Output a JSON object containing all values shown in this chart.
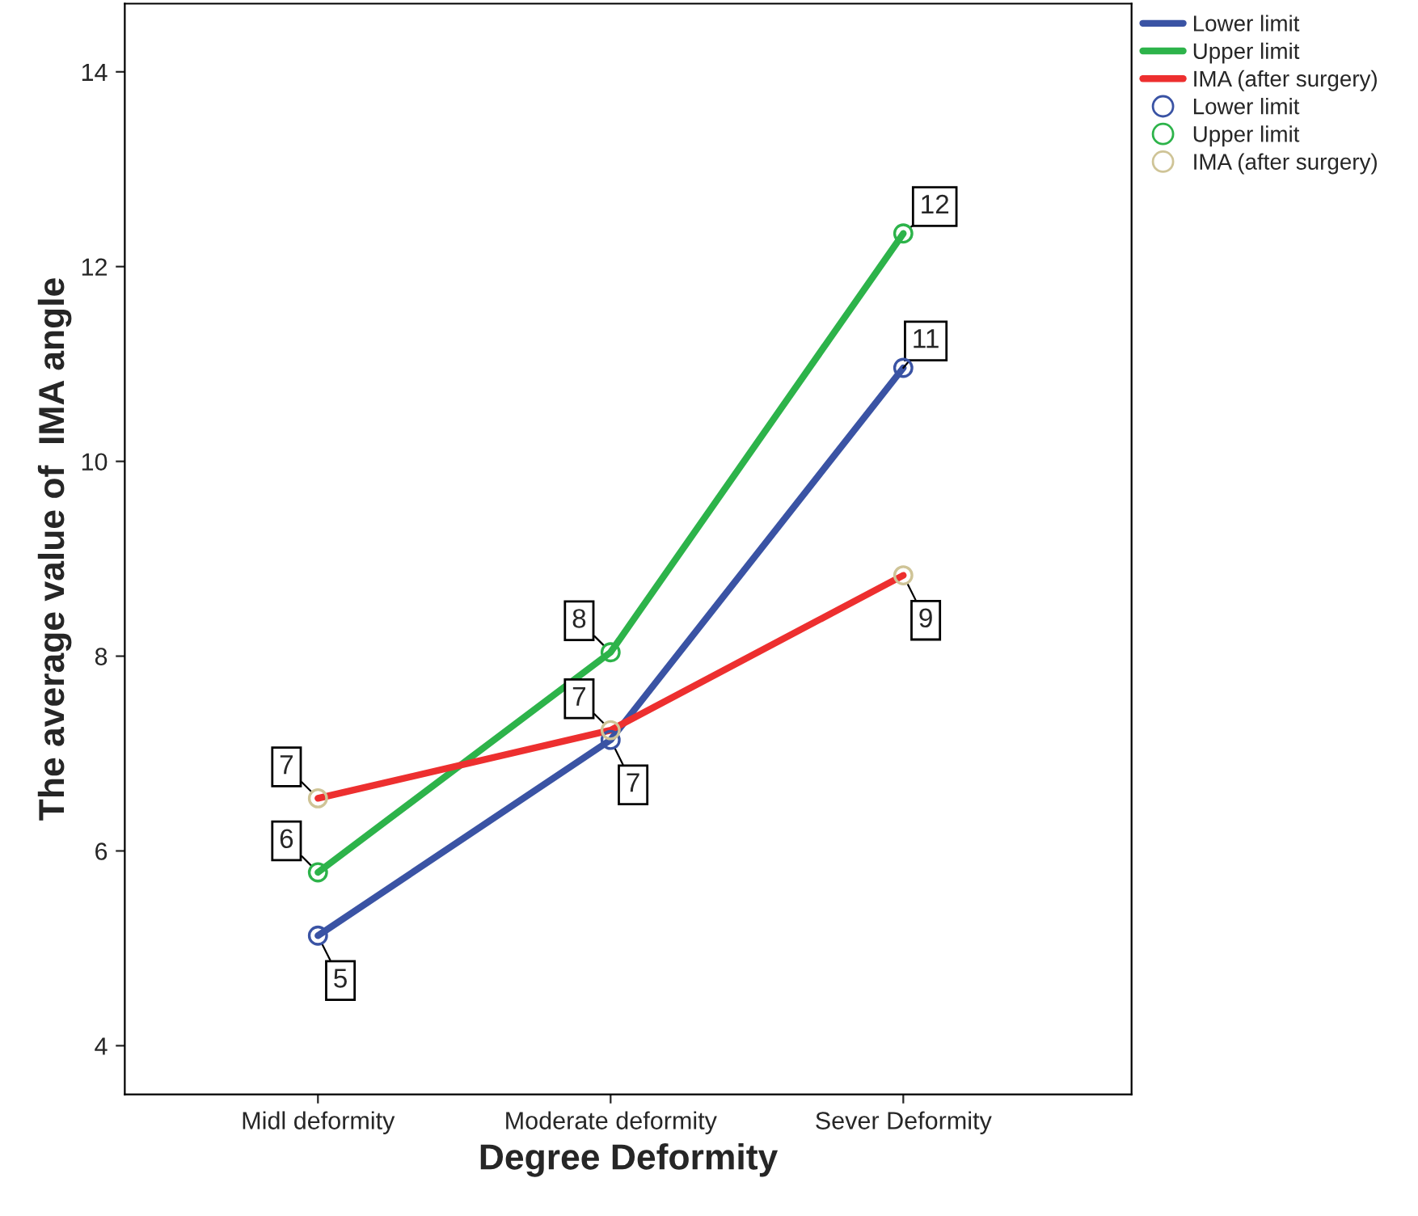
{
  "chart_data": {
    "type": "line",
    "xlabel": "Degree Deformity",
    "ylabel": "The average value of  IMA angle",
    "categories": [
      "Midl deformity",
      "Moderate deformity",
      "Sever Deformity"
    ],
    "series": [
      {
        "name": "Lower limit",
        "color": "#3a53a4",
        "values": [
          5.13,
          7.14,
          10.96
        ]
      },
      {
        "name": "Upper limit",
        "color": "#2db34a",
        "values": [
          5.78,
          8.04,
          12.34
        ]
      },
      {
        "name": "IMA (after surgery)",
        "color": "#ed2f2f",
        "values": [
          6.54,
          7.24,
          8.83
        ]
      },
      {
        "name": "Lower limit",
        "type": "scatter",
        "color": "#3a53a4",
        "values": [
          5.13,
          7.14,
          10.96
        ],
        "value_labels": [
          "5",
          "7",
          "11"
        ]
      },
      {
        "name": "Upper limit",
        "type": "scatter",
        "color": "#2db34a",
        "values": [
          5.78,
          8.04,
          12.34
        ],
        "value_labels": [
          "6",
          "8",
          "12"
        ]
      },
      {
        "name": "IMA (after surgery)",
        "type": "scatter",
        "color": "#cfc497",
        "values": [
          6.54,
          7.24,
          8.83
        ],
        "value_labels": [
          "7",
          "7",
          "9"
        ]
      }
    ],
    "ylim": [
      3.5,
      14.7
    ],
    "yticks": [
      4,
      6,
      8,
      10,
      12,
      14
    ],
    "grid": false,
    "legend": "top right"
  }
}
